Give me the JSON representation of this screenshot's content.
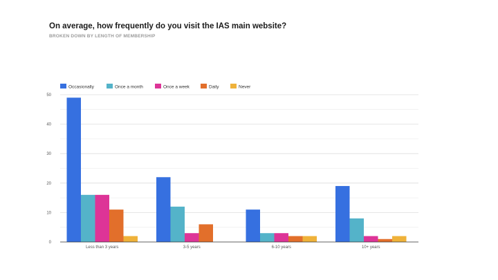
{
  "header": {
    "title": "On average, how frequently do you visit the IAS main website?",
    "subtitle": "BROKEN DOWN BY LENGTH OF MEMBERSHIP"
  },
  "chart_data": {
    "type": "bar",
    "title": "On average, how frequently do you visit the IAS main website?",
    "subtitle": "BROKEN DOWN BY LENGTH OF MEMBERSHIP",
    "xlabel": "",
    "ylabel": "",
    "categories": [
      "Less than 3 years",
      "3-5 years",
      "6-10 years",
      "10+ years"
    ],
    "ylim": [
      0,
      50
    ],
    "yticks": [
      0,
      10,
      20,
      30,
      40,
      50
    ],
    "grid": true,
    "legend_position": "top-left",
    "series": [
      {
        "name": "Occasionally",
        "color": "#3670e0",
        "values": [
          49,
          22,
          11,
          19
        ]
      },
      {
        "name": "Once a month",
        "color": "#54b3c9",
        "values": [
          16,
          12,
          3,
          8
        ]
      },
      {
        "name": "Once a week",
        "color": "#dd3497",
        "values": [
          16,
          3,
          3,
          2
        ]
      },
      {
        "name": "Daily",
        "color": "#e26f2b",
        "values": [
          11,
          6,
          2,
          1
        ]
      },
      {
        "name": "Never",
        "color": "#efb23a",
        "values": [
          2,
          0,
          2,
          2
        ]
      }
    ]
  }
}
